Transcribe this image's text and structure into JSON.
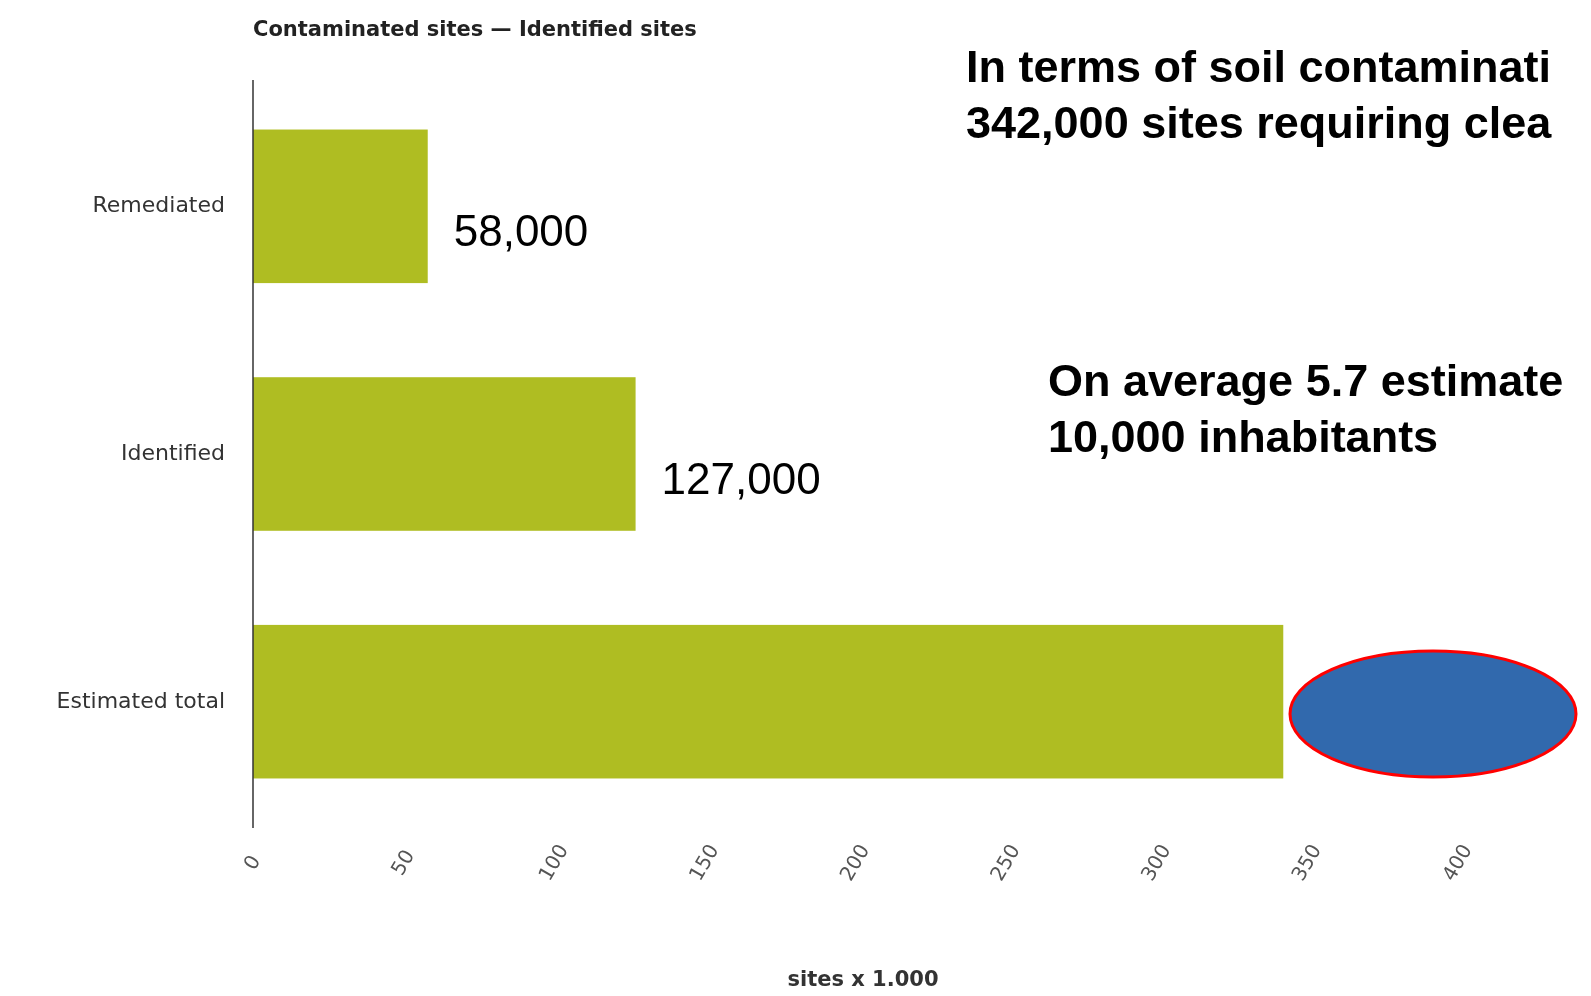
{
  "chart_data": {
    "type": "bar",
    "orientation": "horizontal",
    "title": "Contaminated sites — Identified sites",
    "xlabel": "sites x 1.000",
    "categories": [
      "Remediated",
      "Identified",
      "Estimated total"
    ],
    "values": [
      58,
      127,
      342
    ],
    "color": "#afbd22",
    "xlim": [
      0,
      400
    ],
    "xticks": [
      0,
      50,
      100,
      150,
      200,
      250,
      300,
      350,
      400
    ],
    "grid": false,
    "annotations": [
      "In terms of soil contaminati\n342,000 sites requiring clea",
      "On average 5.7 estimate\n10,000 inhabitants",
      {
        "text": "58,000",
        "x": 58,
        "y": "Remediated"
      },
      {
        "text": "127,000",
        "x": 127,
        "y": "Identified"
      }
    ]
  }
}
